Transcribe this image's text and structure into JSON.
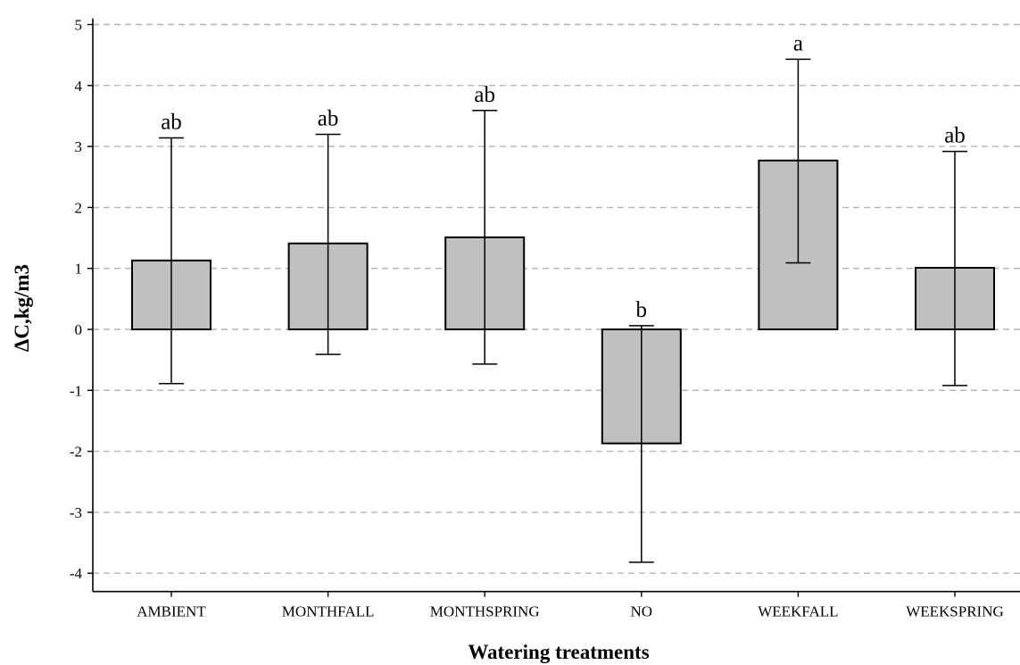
{
  "chart_data": {
    "type": "bar",
    "title": "",
    "xlabel": "Watering treatments",
    "ylabel": "ΔC,kg/m3",
    "categories": [
      "AMBIENT",
      "MONTHFALL",
      "MONTHSPRING",
      "NO",
      "WEEKFALL",
      "WEEKSPRING"
    ],
    "values": [
      1.13,
      1.41,
      1.51,
      -1.87,
      2.77,
      1.01
    ],
    "error_low": [
      -0.89,
      -0.41,
      -0.57,
      -3.82,
      1.09,
      -0.92
    ],
    "error_high": [
      3.14,
      3.2,
      3.59,
      0.06,
      4.43,
      2.92
    ],
    "group_letters": [
      "ab",
      "ab",
      "ab",
      "b",
      "a",
      "ab"
    ],
    "yticks": [
      -4,
      -3,
      -2,
      -1,
      0,
      1,
      2,
      3,
      4,
      5
    ],
    "ylim": [
      -4.3,
      5.1
    ],
    "grid": "horizontal-dashed",
    "legend": "none",
    "colors": {
      "bar_fill": "#c0c0c0",
      "bar_stroke": "#000000",
      "grid": "#b4b4b4",
      "axis": "#000000"
    }
  }
}
